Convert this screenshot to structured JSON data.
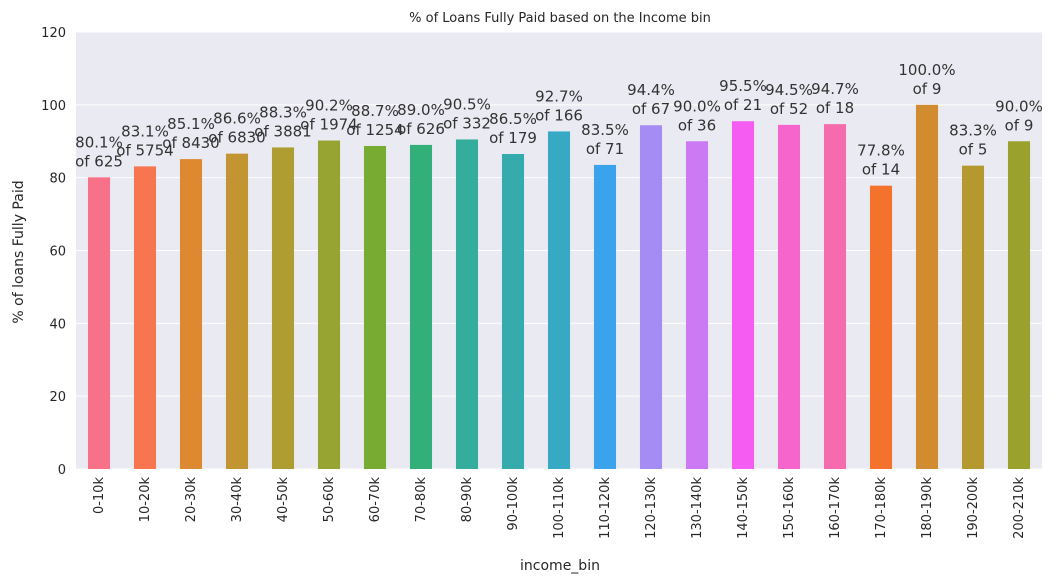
{
  "chart_data": {
    "type": "bar",
    "title": "% of Loans Fully Paid based on the Income bin",
    "xlabel": "income_bin",
    "ylabel": "% of loans Fully Paid",
    "ylim": [
      0,
      120
    ],
    "yticks": [
      "0",
      "20",
      "40",
      "60",
      "80",
      "100",
      "120"
    ],
    "grid": true,
    "categories": [
      "0-10k",
      "10-20k",
      "20-30k",
      "30-40k",
      "40-50k",
      "50-60k",
      "60-70k",
      "70-80k",
      "80-90k",
      "90-100k",
      "100-110k",
      "110-120k",
      "120-130k",
      "130-140k",
      "140-150k",
      "150-160k",
      "160-170k",
      "170-180k",
      "180-190k",
      "190-200k",
      "200-210k"
    ],
    "values": [
      80.1,
      83.1,
      85.1,
      86.6,
      88.3,
      90.2,
      88.7,
      89.0,
      90.5,
      86.5,
      92.7,
      83.5,
      94.4,
      90.0,
      95.5,
      94.5,
      94.7,
      77.8,
      100.0,
      83.3,
      90.0
    ],
    "labels_pct": [
      "80.1%",
      "83.1%",
      "85.1%",
      "86.6%",
      "88.3%",
      "90.2%",
      "88.7%",
      "89.0%",
      "90.5%",
      "86.5%",
      "92.7%",
      "83.5%",
      "94.4%",
      "90.0%",
      "95.5%",
      "94.5%",
      "94.7%",
      "77.8%",
      "100.0%",
      "83.3%",
      "90.0%"
    ],
    "labels_count": [
      "of 625",
      "of 5754",
      "of 8430",
      "of 6830",
      "of 3881",
      "of 1974",
      "of 1254",
      "of 626",
      "of 332",
      "of 179",
      "of 166",
      "of 71",
      "of 67",
      "of 36",
      "of 21",
      "of 52",
      "of 18",
      "of 14",
      "of 9",
      "of 5",
      "of 9"
    ],
    "colors": [
      "#f77189",
      "#f7754f",
      "#dc8932",
      "#c39532",
      "#ae9d31",
      "#97a431",
      "#77ab31",
      "#33b07a",
      "#35ad9c",
      "#36abae",
      "#38a9c5",
      "#3ba3ec",
      "#a48cf4",
      "#cc7af4",
      "#f45cf2",
      "#f565cc",
      "#f66bad",
      "#f5722c",
      "#d08c2e",
      "#b5992e",
      "#9aa12d"
    ]
  }
}
